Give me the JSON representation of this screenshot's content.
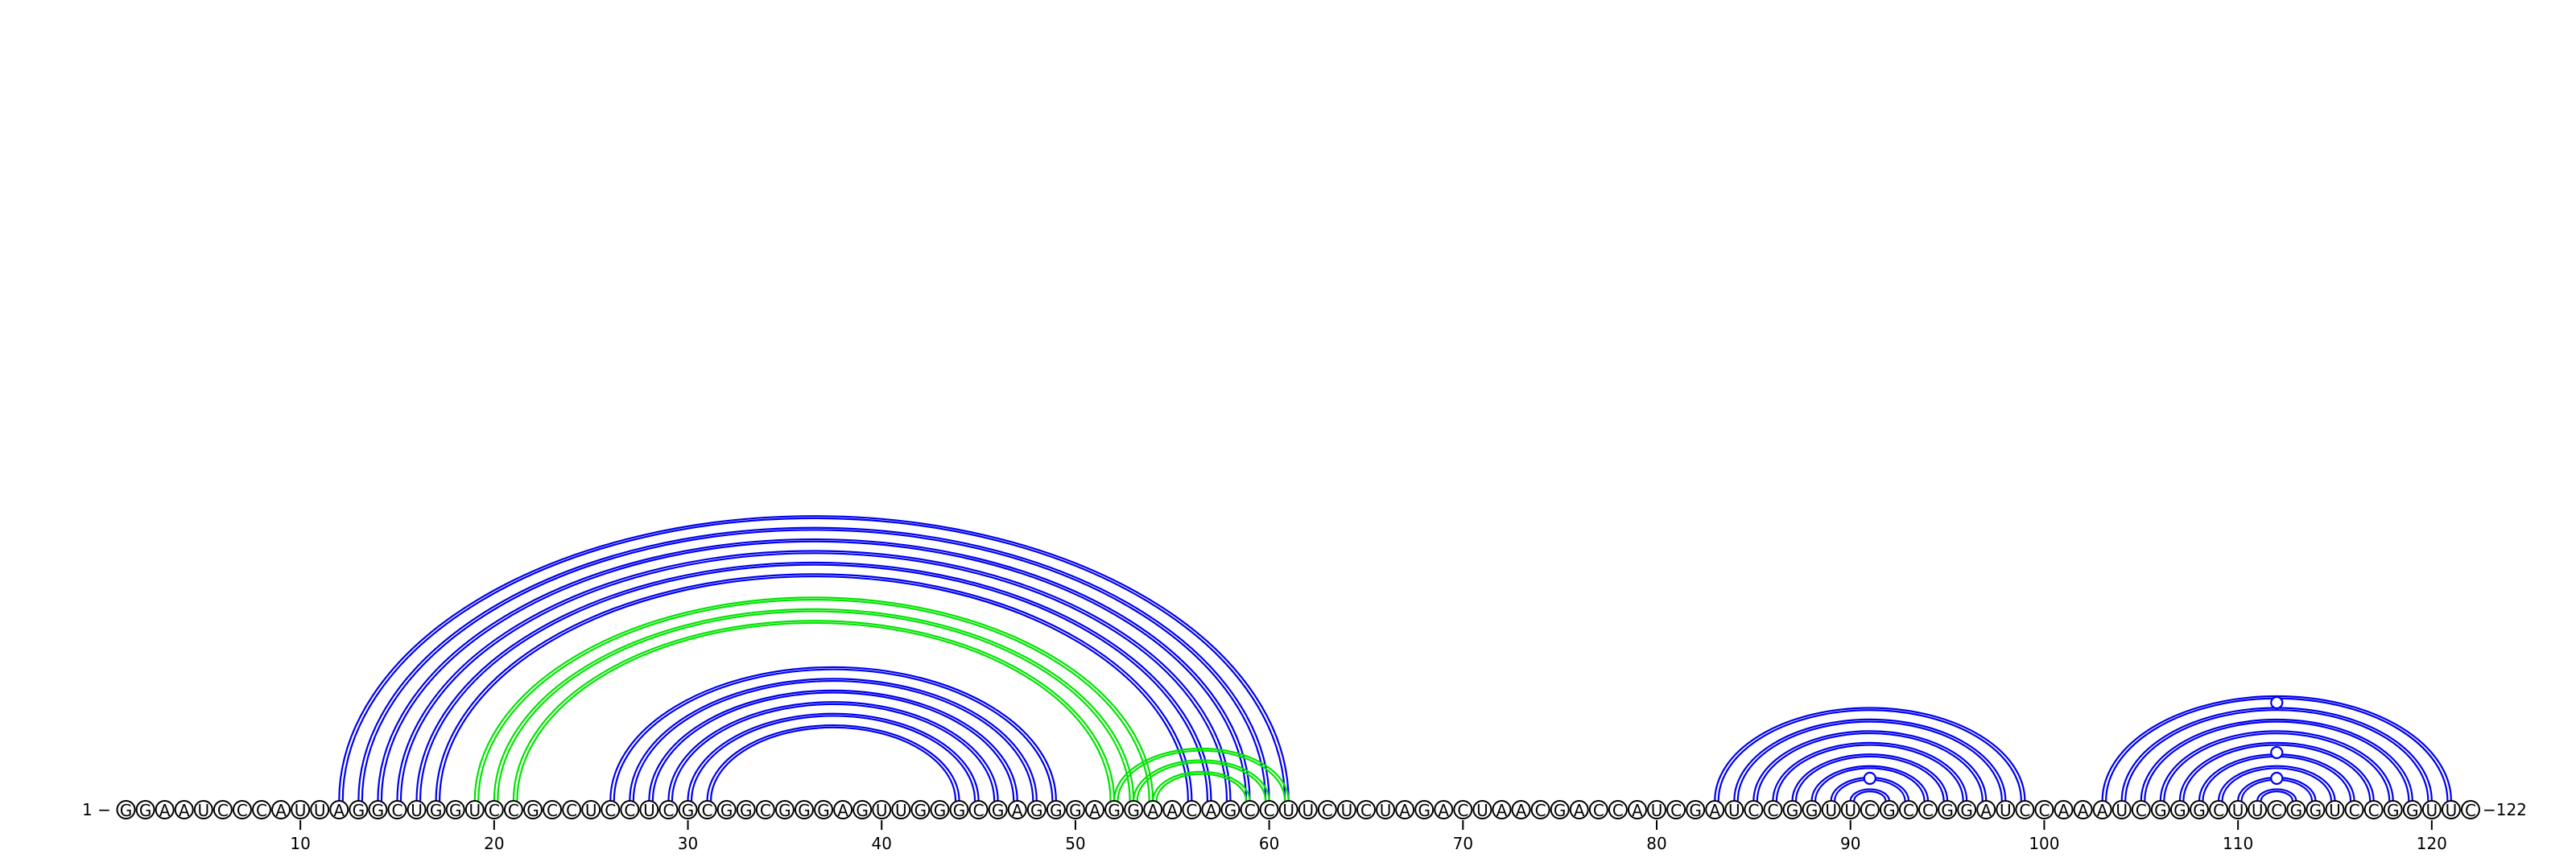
{
  "sequence": "GGAAUCCCAUUAGGCUGGUCCGCCUCCUCGCGGCGGGAGUUGGGCGAGGGAGGAACAGCCUUCUCUAGACUAACGACCAUCGAUCCGGUUCGCCGGAUCCAAAUCGGGCUUCGGUCCGGUUC",
  "start_label": "1",
  "end_label": "122",
  "tick_labels": [
    "10",
    "20",
    "30",
    "40",
    "50",
    "60",
    "70",
    "80",
    "90",
    "100",
    "110",
    "120"
  ],
  "colors": {
    "primary_pair": "#0000ee",
    "alt_pair": "#00e400",
    "nucleotide_outline": "#000000",
    "nucleotide_fill": "#ffffff"
  },
  "arc_groups": [
    {
      "color": "blue",
      "pairs": [
        [
          12,
          61
        ],
        [
          13,
          60
        ],
        [
          14,
          59
        ],
        [
          15,
          58
        ],
        [
          16,
          57
        ],
        [
          17,
          56
        ]
      ]
    },
    {
      "color": "green",
      "pairs": [
        [
          19,
          54
        ],
        [
          20,
          53
        ],
        [
          21,
          52
        ]
      ]
    },
    {
      "color": "blue",
      "pairs": [
        [
          26,
          49
        ],
        [
          27,
          48
        ],
        [
          28,
          47
        ],
        [
          29,
          46
        ],
        [
          30,
          45
        ],
        [
          31,
          44
        ]
      ]
    },
    {
      "color": "green",
      "pairs": [
        [
          52,
          61
        ],
        [
          53,
          60
        ],
        [
          54,
          59
        ]
      ]
    },
    {
      "color": "blue",
      "pairs": [
        [
          83,
          99
        ],
        [
          84,
          98
        ],
        [
          85,
          97
        ],
        [
          86,
          96
        ],
        [
          87,
          95
        ],
        [
          88,
          94
        ],
        [
          89,
          93
        ],
        [
          90,
          92
        ]
      ]
    },
    {
      "color": "blue",
      "pairs": [
        [
          103,
          121
        ],
        [
          104,
          120
        ],
        [
          105,
          119
        ],
        [
          106,
          118
        ],
        [
          107,
          117
        ],
        [
          108,
          116
        ],
        [
          109,
          115
        ],
        [
          110,
          114
        ],
        [
          111,
          113
        ]
      ]
    }
  ],
  "ring_markers": [
    91,
    112
  ]
}
